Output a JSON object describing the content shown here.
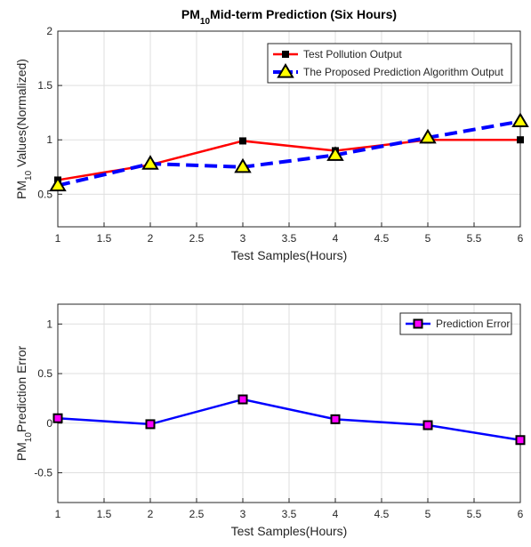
{
  "chart_data": [
    {
      "type": "line",
      "title": [
        "PM",
        "10",
        "Mid-term Prediction (Six Hours)"
      ],
      "ylabel": [
        "PM",
        "10",
        " Values(Normalized)"
      ],
      "xlabel": "Test Samples(Hours)",
      "x": [
        1,
        2,
        3,
        4,
        5,
        6
      ],
      "xlim": [
        1,
        6
      ],
      "xticks": [
        1,
        1.5,
        2,
        2.5,
        3,
        3.5,
        4,
        4.5,
        5,
        5.5,
        6
      ],
      "ylim": [
        0.2,
        2
      ],
      "yticks": [
        0.5,
        1,
        1.5,
        2
      ],
      "grid": true,
      "legend": "top-right",
      "series": [
        {
          "name": "Test Pollution Output",
          "color": "#ff0000",
          "marker": "square",
          "marker_color": "#000000",
          "dashed": false,
          "values": [
            0.63,
            0.77,
            0.99,
            0.9,
            1.0,
            1.0
          ]
        },
        {
          "name": "The Proposed Prediction Algorithm Output",
          "color": "#0000ff",
          "marker": "triangle",
          "marker_color": "#ffff00",
          "dashed": true,
          "values": [
            0.58,
            0.78,
            0.75,
            0.86,
            1.02,
            1.17
          ]
        }
      ]
    },
    {
      "type": "line",
      "ylabel": [
        "PM",
        "10",
        "Prediction Error"
      ],
      "xlabel": "Test Samples(Hours)",
      "x": [
        1,
        2,
        3,
        4,
        5,
        6
      ],
      "xlim": [
        1,
        6
      ],
      "xticks": [
        1,
        1.5,
        2,
        2.5,
        3,
        3.5,
        4,
        4.5,
        5,
        5.5,
        6
      ],
      "ylim": [
        -0.8,
        1.2
      ],
      "yticks": [
        -0.5,
        0,
        0.5,
        1
      ],
      "grid": true,
      "legend": "top-right",
      "series": [
        {
          "name": "Prediction Error",
          "color": "#0000ff",
          "marker": "square",
          "marker_color": "#ff00ff",
          "dashed": false,
          "values": [
            0.05,
            -0.01,
            0.24,
            0.04,
            -0.02,
            -0.17
          ]
        }
      ]
    }
  ]
}
